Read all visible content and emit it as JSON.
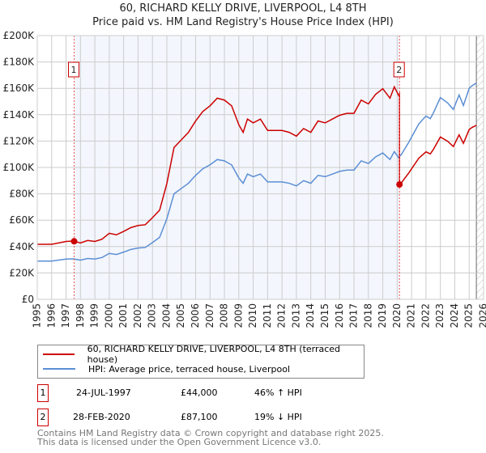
{
  "title": "60, RICHARD KELLY DRIVE, LIVERPOOL, L4 8TH",
  "subtitle": "Price paid vs. HM Land Registry's House Price Index (HPI)",
  "chart_data": {
    "type": "line",
    "xlim": [
      1995,
      2026
    ],
    "ylim": [
      0,
      200000
    ],
    "y_ticks": [
      "£0",
      "£20K",
      "£40K",
      "£60K",
      "£80K",
      "£100K",
      "£120K",
      "£140K",
      "£160K",
      "£180K",
      "£200K"
    ],
    "x_ticks": [
      "1995",
      "1996",
      "1997",
      "1998",
      "1999",
      "2000",
      "2001",
      "2002",
      "2003",
      "2004",
      "2005",
      "2006",
      "2007",
      "2008",
      "2009",
      "2010",
      "2011",
      "2012",
      "2013",
      "2014",
      "2015",
      "2016",
      "2017",
      "2018",
      "2019",
      "2020",
      "2021",
      "2022",
      "2023",
      "2024",
      "2025",
      "2026"
    ],
    "hatched_from": 2025.5,
    "colors": {
      "property": "#cc0000",
      "hpi": "#5b8fd4"
    },
    "hpi_series": {
      "x": [
        1995,
        1996,
        1997,
        1997.5,
        1998,
        1998.5,
        1999,
        1999.5,
        2000,
        2000.5,
        2001,
        2001.5,
        2002,
        2002.5,
        2003,
        2003.5,
        2004,
        2004.5,
        2005,
        2005.5,
        2006,
        2006.5,
        2007,
        2007.5,
        2008,
        2008.5,
        2009,
        2009.3,
        2009.6,
        2010,
        2010.5,
        2011,
        2011.5,
        2012,
        2012.5,
        2013,
        2013.5,
        2014,
        2014.5,
        2015,
        2015.5,
        2016,
        2016.5,
        2017,
        2017.5,
        2018,
        2018.5,
        2019,
        2019.5,
        2019.8,
        2020.1,
        2020.3,
        2020.8,
        2021,
        2021.5,
        2022,
        2022.3,
        2022.5,
        2023,
        2023.5,
        2023.9,
        2024.3,
        2024.6,
        2025,
        2025.2,
        2025.5
      ],
      "y": [
        29000,
        29000,
        30500,
        30700,
        29700,
        31000,
        30500,
        31700,
        34800,
        34000,
        35800,
        37800,
        38900,
        39300,
        43000,
        47000,
        61000,
        80000,
        84000,
        88000,
        94000,
        99000,
        102000,
        106000,
        105000,
        102000,
        92000,
        88000,
        95000,
        93000,
        95000,
        89000,
        89000,
        89000,
        88000,
        86000,
        90000,
        88000,
        94000,
        93000,
        95000,
        97000,
        98000,
        98000,
        105000,
        103000,
        108000,
        111000,
        106000,
        112000,
        107500,
        110000,
        119000,
        123000,
        133000,
        139000,
        137000,
        141000,
        153000,
        149000,
        144000,
        155000,
        147000,
        160000,
        162000,
        164000
      ]
    },
    "sales": [
      {
        "label": "1",
        "x": 1997.56,
        "date": "24-JUL-1997",
        "price": "£44,000",
        "value": 44000,
        "hpi": "46% ↑ HPI"
      },
      {
        "label": "2",
        "x": 2020.16,
        "date": "28-FEB-2020",
        "price": "£87,100",
        "value": 87100,
        "hpi": "19% ↓ HPI"
      }
    ],
    "legend": [
      "60, RICHARD KELLY DRIVE, LIVERPOOL, L4 8TH (terraced house)",
      "HPI: Average price, terraced house, Liverpool"
    ]
  },
  "footer": [
    "Contains HM Land Registry data © Crown copyright and database right 2025.",
    "This data is licensed under the Open Government Licence v3.0."
  ]
}
